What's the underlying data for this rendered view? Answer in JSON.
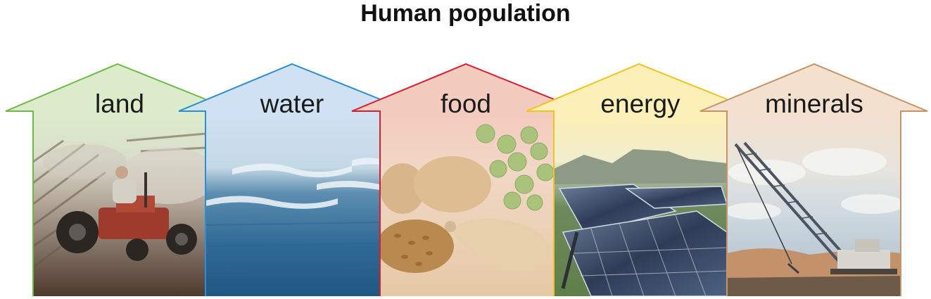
{
  "title": "Human population",
  "resources": [
    {
      "label": "land",
      "stroke": "#6cbb45",
      "fill": "#dcebc9",
      "photo": "tractor plowing field"
    },
    {
      "label": "water",
      "stroke": "#2a8fd6",
      "fill": "#cfe1f2",
      "photo": "ocean waves"
    },
    {
      "label": "food",
      "stroke": "#d8202f",
      "fill": "#f4cbbf",
      "photo": "potatoes, grapes, wheat and chicken"
    },
    {
      "label": "energy",
      "stroke": "#f2c21d",
      "fill": "#fcefb8",
      "photo": "solar panels"
    },
    {
      "label": "minerals",
      "stroke": "#c79466",
      "fill": "#f3e0cf",
      "photo": "dragline mining crane"
    }
  ]
}
